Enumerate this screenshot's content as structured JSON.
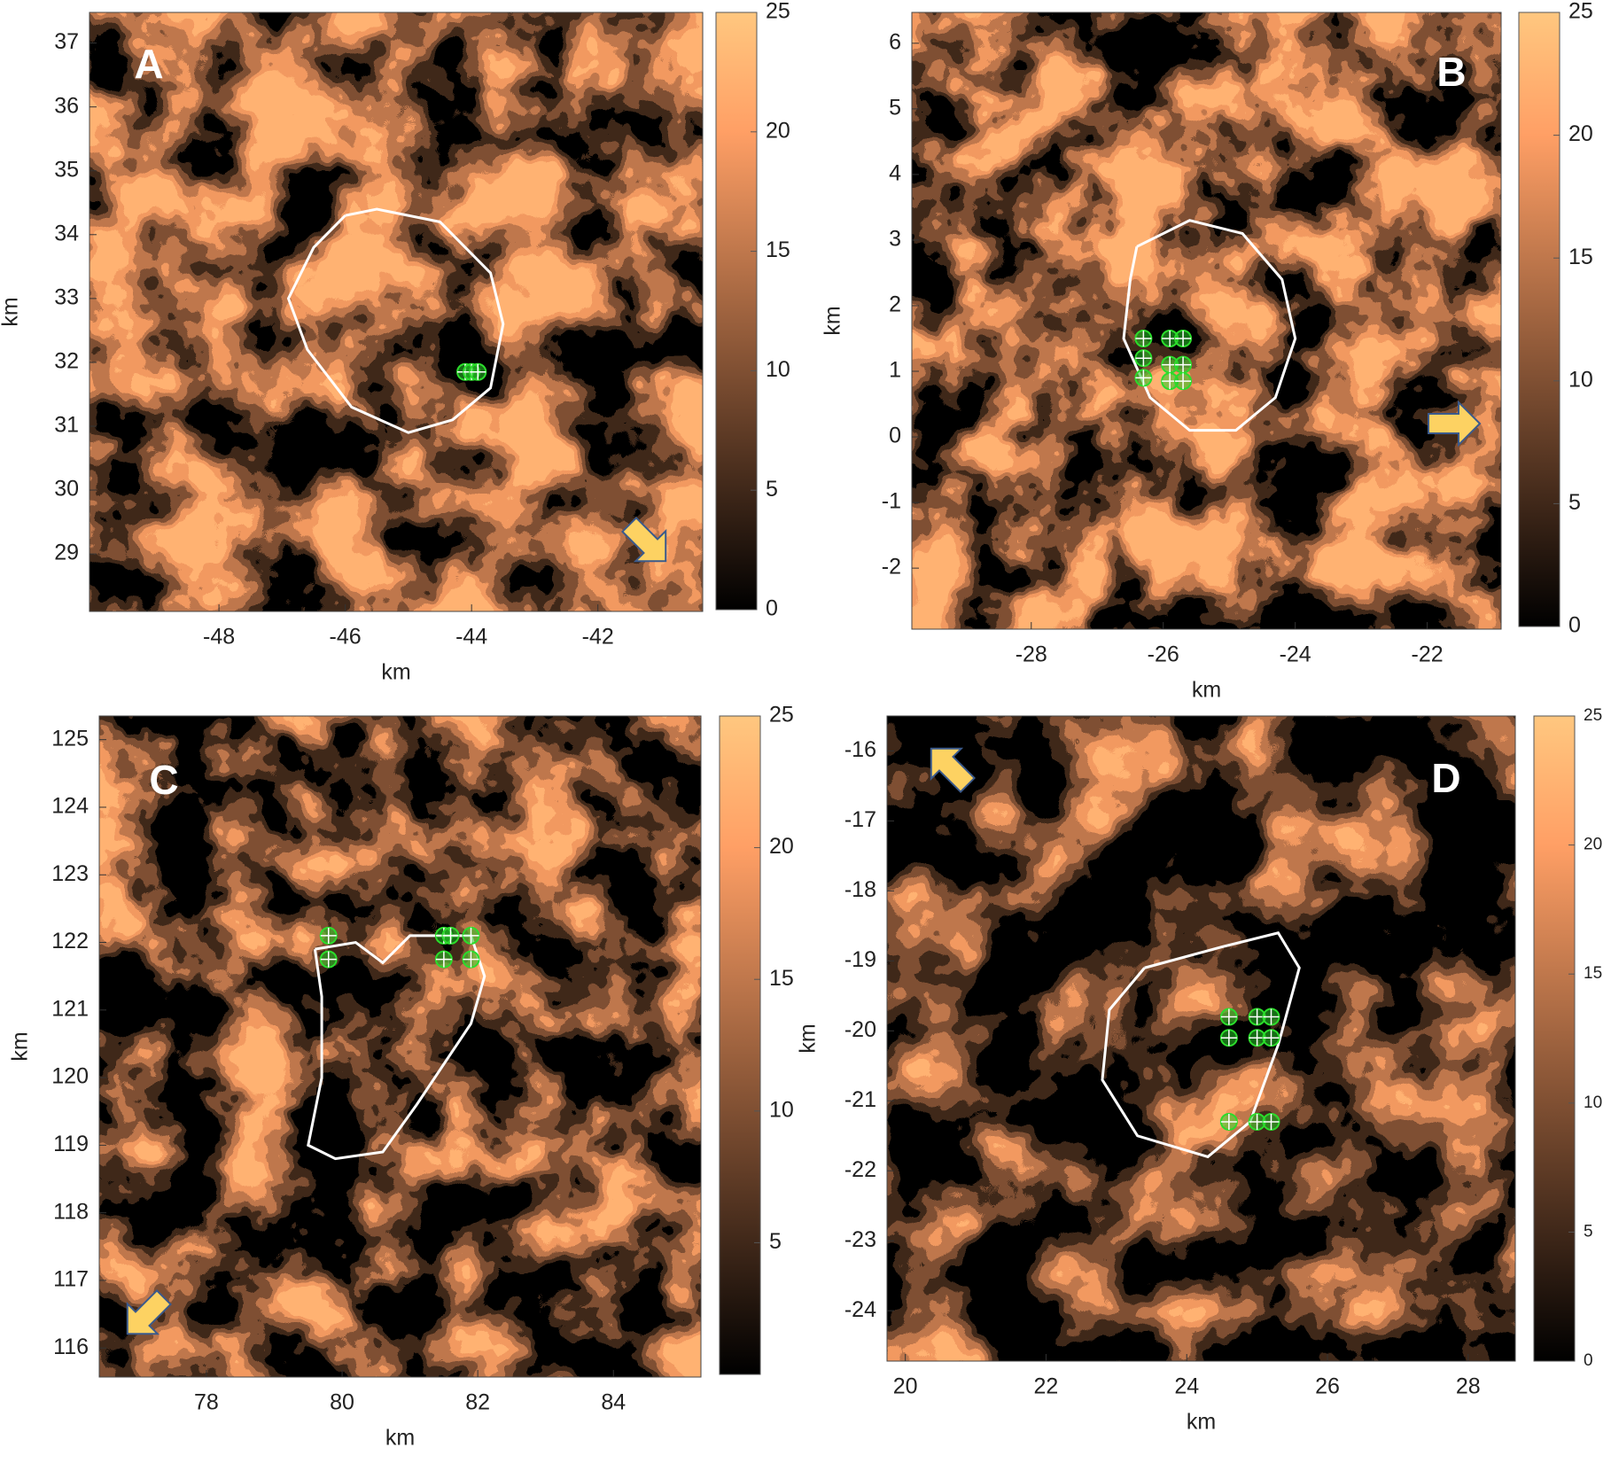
{
  "chart_data": [
    {
      "type": "contour",
      "title": "A",
      "xlabel": "km",
      "ylabel": "km",
      "xlim": [
        -50.05,
        -40.34
      ],
      "ylim": [
        28.1,
        37.48
      ],
      "xticks": [
        -48,
        -46,
        -44,
        -42
      ],
      "yticks": [
        29,
        30,
        31,
        32,
        33,
        34,
        35,
        36,
        37
      ],
      "colorbar": {
        "lim": [
          0,
          25
        ],
        "ticks": [
          0,
          5,
          10,
          15,
          20,
          25
        ]
      },
      "outline": {
        "x": [
          -46.0,
          -45.5,
          -44.5,
          -43.7,
          -43.5,
          -43.7,
          -44.3,
          -45.0,
          -45.9,
          -46.6,
          -46.9,
          -46.5,
          -46.0
        ],
        "y": [
          34.3,
          34.4,
          34.2,
          33.4,
          32.6,
          31.6,
          31.1,
          30.9,
          31.3,
          32.2,
          33.0,
          33.8,
          34.3
        ]
      },
      "points": {
        "x": [
          -44.1,
          -44.0,
          -43.9
        ],
        "y": [
          31.85,
          31.85,
          31.85
        ]
      }
    },
    {
      "type": "contour",
      "title": "B",
      "xlabel": "km",
      "ylabel": "km",
      "xlim": [
        -29.81,
        -20.88
      ],
      "ylim": [
        -2.93,
        6.47
      ],
      "xticks": [
        -28,
        -26,
        -24,
        -22
      ],
      "yticks": [
        -2,
        -1,
        0,
        1,
        2,
        3,
        4,
        5,
        6
      ],
      "colorbar": {
        "lim": [
          0,
          25
        ],
        "ticks": [
          0,
          5,
          10,
          15,
          20,
          25
        ]
      },
      "outline": {
        "x": [
          -26.4,
          -25.6,
          -24.8,
          -24.2,
          -24.0,
          -24.3,
          -24.9,
          -25.6,
          -26.2,
          -26.6,
          -26.5,
          -26.4
        ],
        "y": [
          2.9,
          3.3,
          3.1,
          2.4,
          1.5,
          0.6,
          0.1,
          0.1,
          0.6,
          1.5,
          2.4,
          2.9
        ]
      },
      "points": {
        "x": [
          -26.3,
          -26.3,
          -26.3,
          -25.9,
          -25.7,
          -25.9,
          -25.7,
          -25.9,
          -25.7
        ],
        "y": [
          1.5,
          1.2,
          0.9,
          1.5,
          1.5,
          1.1,
          1.1,
          0.85,
          0.85
        ]
      }
    },
    {
      "type": "contour",
      "title": "C",
      "xlabel": "km",
      "ylabel": "km",
      "xlim": [
        76.42,
        85.29
      ],
      "ylim": [
        115.57,
        125.35
      ],
      "xticks": [
        78,
        80,
        82,
        84
      ],
      "yticks": [
        116,
        117,
        118,
        119,
        120,
        121,
        122,
        123,
        124,
        125
      ],
      "colorbar": {
        "lim": [
          0,
          25
        ],
        "ticks": [
          5,
          10,
          15,
          20,
          25
        ]
      },
      "outline": {
        "x": [
          79.6,
          80.2,
          80.6,
          81.0,
          81.9,
          82.1,
          81.9,
          81.1,
          80.6,
          79.9,
          79.5,
          79.7,
          79.7,
          79.6
        ],
        "y": [
          121.9,
          122.0,
          121.7,
          122.1,
          122.1,
          121.5,
          120.8,
          119.6,
          118.9,
          118.8,
          119.0,
          120.0,
          121.2,
          121.9
        ]
      },
      "points": {
        "x": [
          79.8,
          79.8,
          81.5,
          81.6,
          81.9,
          81.5,
          81.9
        ],
        "y": [
          122.1,
          121.75,
          122.1,
          122.1,
          122.1,
          121.75,
          121.75
        ]
      }
    },
    {
      "type": "contour",
      "title": "D",
      "xlabel": "km",
      "ylabel": "km",
      "xlim": [
        19.74,
        28.67
      ],
      "ylim": [
        -24.72,
        -15.5
      ],
      "xticks": [
        20,
        22,
        24,
        26,
        28
      ],
      "yticks": [
        -24,
        -23,
        -22,
        -21,
        -20,
        -19,
        -18,
        -17,
        -16
      ],
      "colorbar": {
        "lim": [
          0,
          25
        ],
        "ticks": [
          0,
          5,
          10,
          15,
          20,
          25
        ]
      },
      "outline": {
        "x": [
          23.4,
          24.5,
          25.3,
          25.6,
          25.3,
          24.9,
          24.3,
          23.3,
          22.8,
          22.9,
          23.4
        ],
        "y": [
          -19.1,
          -18.8,
          -18.6,
          -19.1,
          -20.2,
          -21.3,
          -21.8,
          -21.5,
          -20.7,
          -19.7,
          -19.1
        ]
      },
      "points": {
        "x": [
          24.6,
          24.6,
          25.0,
          25.2,
          25.0,
          25.2,
          24.6,
          25.0,
          25.2
        ],
        "y": [
          -19.8,
          -20.1,
          -19.8,
          -19.8,
          -20.1,
          -20.1,
          -21.3,
          -21.3,
          -21.3
        ]
      }
    }
  ]
}
